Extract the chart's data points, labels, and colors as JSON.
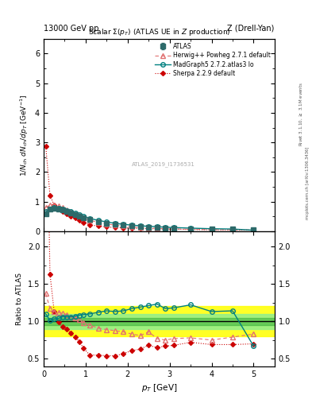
{
  "title_top_left": "13000 GeV pp",
  "title_top_right": "Z (Drell-Yan)",
  "plot_title": "Scalar $\\Sigma(p_T)$ (ATLAS UE in $Z$ production)",
  "ylabel_main": "1/N$_{ch}$ dN$_{ch}$/dp$_T$ [GeV$^{-1}$]",
  "ylabel_ratio": "Ratio to ATLAS",
  "xlabel": "p$_T$ [GeV]",
  "watermark": "ATLAS_2019_I1736531",
  "atlas_x": [
    0.05,
    0.15,
    0.25,
    0.35,
    0.45,
    0.55,
    0.65,
    0.75,
    0.85,
    0.95,
    1.1,
    1.3,
    1.5,
    1.7,
    1.9,
    2.1,
    2.3,
    2.5,
    2.7,
    2.9,
    3.1,
    3.5,
    4.0,
    4.5,
    5.0
  ],
  "atlas_y": [
    0.6,
    0.75,
    0.78,
    0.76,
    0.72,
    0.67,
    0.62,
    0.57,
    0.52,
    0.47,
    0.4,
    0.33,
    0.28,
    0.24,
    0.21,
    0.18,
    0.16,
    0.14,
    0.13,
    0.12,
    0.11,
    0.09,
    0.08,
    0.07,
    0.06
  ],
  "atlas_err": [
    0.02,
    0.02,
    0.02,
    0.02,
    0.02,
    0.02,
    0.01,
    0.01,
    0.01,
    0.01,
    0.01,
    0.01,
    0.01,
    0.005,
    0.005,
    0.005,
    0.005,
    0.005,
    0.004,
    0.004,
    0.004,
    0.003,
    0.003,
    0.003,
    0.003
  ],
  "herwig_x": [
    0.05,
    0.15,
    0.25,
    0.35,
    0.45,
    0.55,
    0.65,
    0.75,
    0.85,
    0.95,
    1.1,
    1.3,
    1.5,
    1.7,
    1.9,
    2.1,
    2.3,
    2.5,
    2.7,
    2.9,
    3.1,
    3.5,
    4.0,
    4.5,
    5.0
  ],
  "herwig_y": [
    0.82,
    0.88,
    0.88,
    0.85,
    0.8,
    0.73,
    0.66,
    0.59,
    0.53,
    0.46,
    0.38,
    0.3,
    0.25,
    0.21,
    0.18,
    0.15,
    0.13,
    0.12,
    0.1,
    0.09,
    0.085,
    0.07,
    0.06,
    0.055,
    0.05
  ],
  "madgraph_x": [
    0.05,
    0.15,
    0.25,
    0.35,
    0.45,
    0.55,
    0.65,
    0.75,
    0.85,
    0.95,
    1.1,
    1.3,
    1.5,
    1.7,
    1.9,
    2.1,
    2.3,
    2.5,
    2.7,
    2.9,
    3.1,
    3.5,
    4.0,
    4.5,
    5.0
  ],
  "madgraph_y": [
    0.66,
    0.76,
    0.8,
    0.79,
    0.76,
    0.71,
    0.66,
    0.61,
    0.56,
    0.51,
    0.44,
    0.37,
    0.32,
    0.27,
    0.24,
    0.21,
    0.19,
    0.17,
    0.16,
    0.14,
    0.13,
    0.11,
    0.09,
    0.08,
    0.04
  ],
  "sherpa_x": [
    0.05,
    0.15,
    0.25,
    0.35,
    0.45,
    0.55,
    0.65,
    0.75,
    0.85,
    0.95,
    1.1,
    1.3,
    1.5,
    1.7,
    1.9,
    2.1,
    2.3,
    2.5,
    2.7,
    2.9,
    3.1,
    3.5,
    4.0,
    4.5,
    5.0
  ],
  "sherpa_y": [
    2.87,
    1.22,
    0.88,
    0.75,
    0.67,
    0.6,
    0.52,
    0.45,
    0.38,
    0.3,
    0.22,
    0.18,
    0.15,
    0.13,
    0.12,
    0.11,
    0.1,
    0.095,
    0.085,
    0.08,
    0.075,
    0.065,
    0.055,
    0.048,
    0.042
  ],
  "herwig_ratio": [
    1.37,
    1.17,
    1.13,
    1.12,
    1.11,
    1.09,
    1.06,
    1.04,
    1.02,
    0.98,
    0.95,
    0.91,
    0.89,
    0.875,
    0.86,
    0.83,
    0.81,
    0.86,
    0.77,
    0.75,
    0.77,
    0.78,
    0.75,
    0.79,
    0.83
  ],
  "madgraph_ratio": [
    1.1,
    1.01,
    1.03,
    1.04,
    1.06,
    1.06,
    1.06,
    1.07,
    1.08,
    1.09,
    1.1,
    1.12,
    1.14,
    1.13,
    1.14,
    1.17,
    1.19,
    1.21,
    1.23,
    1.17,
    1.18,
    1.22,
    1.13,
    1.14,
    0.67
  ],
  "sherpa_ratio": [
    4.78,
    1.63,
    1.13,
    0.99,
    0.93,
    0.9,
    0.84,
    0.79,
    0.73,
    0.64,
    0.55,
    0.55,
    0.54,
    0.54,
    0.57,
    0.61,
    0.63,
    0.68,
    0.65,
    0.67,
    0.68,
    0.72,
    0.69,
    0.69,
    0.7
  ],
  "ylim_main": [
    0,
    6.5
  ],
  "ylim_ratio": [
    0.4,
    2.2
  ],
  "xlim": [
    0,
    5.5
  ],
  "color_atlas": "#2d6a6a",
  "color_herwig": "#e07070",
  "color_madgraph": "#008080",
  "color_sherpa": "#cc0000"
}
